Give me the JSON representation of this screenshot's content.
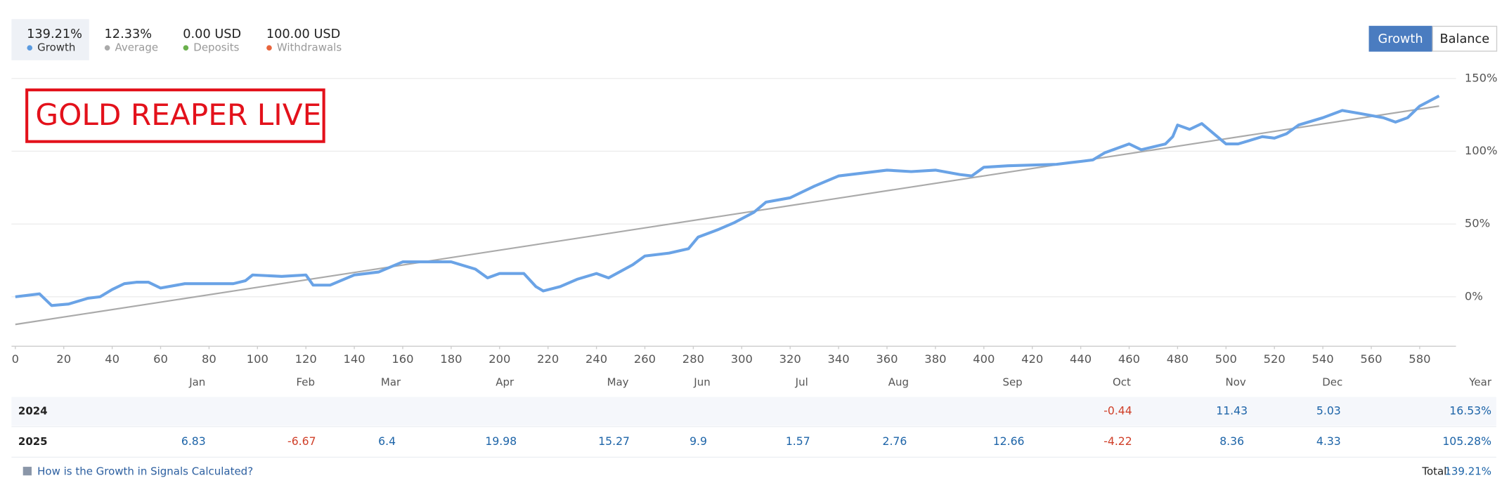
{
  "stats": [
    {
      "value": "139.21%",
      "label": "Growth",
      "color": "#5b9be0"
    },
    {
      "value": "12.33%",
      "label": "Average",
      "color": "#aaaaaa"
    },
    {
      "value": "0.00 USD",
      "label": "Deposits",
      "color": "#6ab04c"
    },
    {
      "value": "100.00 USD",
      "label": "Withdrawals",
      "color": "#e8643c"
    }
  ],
  "buttons": [
    "Growth",
    "Balance"
  ],
  "annotation": "GOLD REAPER LIVE",
  "chart_data": {
    "type": "line",
    "xlim": [
      0,
      595
    ],
    "ylim": [
      -34,
      150
    ],
    "xticks": [
      0,
      20,
      40,
      60,
      80,
      100,
      120,
      140,
      160,
      180,
      200,
      220,
      240,
      260,
      280,
      300,
      320,
      340,
      360,
      380,
      400,
      420,
      440,
      460,
      480,
      500,
      520,
      540,
      560,
      580
    ],
    "yticks": [
      {
        "value": 150,
        "label": "150%"
      },
      {
        "value": 100,
        "label": "100%"
      },
      {
        "value": 50,
        "label": "50%"
      },
      {
        "value": 0,
        "label": "0%"
      }
    ],
    "grid": true,
    "series": [
      {
        "color": "#6aa3e6",
        "x": [
          0,
          10,
          15,
          22,
          30,
          35,
          40,
          45,
          50,
          55,
          60,
          70,
          80,
          90,
          95,
          98,
          110,
          120,
          123,
          130,
          140,
          150,
          160,
          170,
          180,
          190,
          195,
          200,
          210,
          215,
          218,
          225,
          232,
          240,
          245,
          255,
          260,
          270,
          278,
          282,
          290,
          297,
          305,
          310,
          320,
          330,
          340,
          350,
          360,
          370,
          380,
          390,
          395,
          400,
          410,
          430,
          440,
          445,
          450,
          460,
          465,
          475,
          478,
          480,
          485,
          490,
          495,
          500,
          505,
          515,
          520,
          525,
          530,
          540,
          548,
          555,
          565,
          570,
          575,
          580,
          588
        ],
        "values": [
          0,
          2,
          -6,
          -5,
          -1,
          0,
          5,
          9,
          10,
          10,
          6,
          9,
          9,
          9,
          11,
          15,
          14,
          15,
          8,
          8,
          15,
          17,
          24,
          24,
          24,
          19,
          13,
          16,
          16,
          7,
          4,
          7,
          12,
          16,
          13,
          22,
          28,
          30,
          33,
          41,
          46,
          51,
          58,
          65,
          68,
          76,
          83,
          85,
          87,
          86,
          87,
          84,
          83,
          89,
          90,
          91,
          93,
          94,
          99,
          105,
          101,
          105,
          110,
          118,
          115,
          119,
          112,
          105,
          105,
          110,
          109,
          112,
          118,
          123,
          128,
          126,
          123,
          120,
          123,
          131,
          138
        ]
      },
      {
        "color": "#aaaaaa",
        "x": [
          0,
          588
        ],
        "values": [
          -19,
          131
        ]
      }
    ]
  },
  "table": {
    "columns": [
      "Jan",
      "Feb",
      "Mar",
      "Apr",
      "May",
      "Jun",
      "Jul",
      "Aug",
      "Sep",
      "Oct",
      "Nov",
      "Dec",
      "Year"
    ],
    "rows": [
      {
        "label": "2024",
        "values": [
          null,
          null,
          null,
          null,
          null,
          null,
          null,
          null,
          null,
          -0.44,
          11.43,
          5.03,
          "16.53%"
        ]
      },
      {
        "label": "2025",
        "values": [
          6.83,
          -6.67,
          6.4,
          19.98,
          15.27,
          9.9,
          1.57,
          2.76,
          12.66,
          -4.22,
          8.36,
          4.33,
          "105.28%"
        ]
      }
    ]
  },
  "footer": {
    "link": "How is the Growth in Signals Calculated?",
    "total_label": "Total:",
    "total_value": "139.21%"
  }
}
